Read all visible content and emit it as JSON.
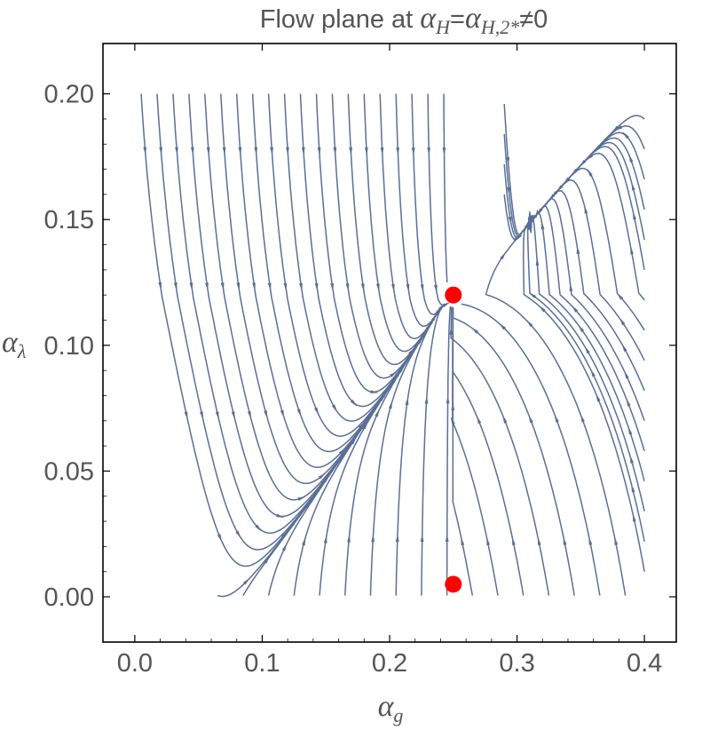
{
  "chart_data": {
    "type": "streamplot",
    "title": {
      "prefix": "Flow plane at ",
      "lhs": "α",
      "lhs_sub": "H",
      "eq": "=",
      "rhs": "α",
      "rhs_sub": "H,2*",
      "suffix": "≠0"
    },
    "xlabel": {
      "sym": "α",
      "sub": "g"
    },
    "ylabel": {
      "sym": "α",
      "sub": "λ"
    },
    "xlim": [
      -0.025,
      0.425
    ],
    "ylim": [
      -0.018,
      0.22
    ],
    "x_ticks": [
      "0.0",
      "0.1",
      "0.2",
      "0.3",
      "0.4"
    ],
    "x_tick_values": [
      0.0,
      0.1,
      0.2,
      0.3,
      0.4
    ],
    "y_ticks": [
      "0.00",
      "0.05",
      "0.10",
      "0.15",
      "0.20"
    ],
    "y_tick_values": [
      0.0,
      0.05,
      0.1,
      0.15,
      0.2
    ],
    "fixed_points": [
      {
        "x": 0.25,
        "y": 0.12
      },
      {
        "x": 0.25,
        "y": 0.005
      }
    ],
    "colors": {
      "stream": "#5a6f96",
      "fixed_point": "#ff0000",
      "frame": "#000000"
    }
  }
}
